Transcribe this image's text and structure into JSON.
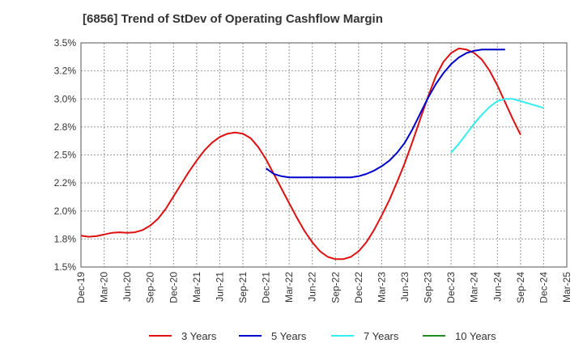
{
  "chart_data": {
    "type": "line",
    "title": "[6856]  Trend of StDev of Operating Cashflow Margin",
    "xlabel": "",
    "ylabel": "",
    "ylim": [
      1.5,
      3.5
    ],
    "y_ticks": [
      "1.5%",
      "1.8%",
      "2.0%",
      "2.2%",
      "2.5%",
      "2.8%",
      "3.0%",
      "3.2%",
      "3.5%"
    ],
    "x_ticks": [
      "Dec-19",
      "Mar-20",
      "Jun-20",
      "Sep-20",
      "Dec-20",
      "Mar-21",
      "Jun-21",
      "Sep-21",
      "Dec-21",
      "Mar-22",
      "Jun-22",
      "Sep-22",
      "Dec-22",
      "Mar-23",
      "Jun-23",
      "Sep-23",
      "Dec-23",
      "Mar-24",
      "Jun-24",
      "Sep-24",
      "Dec-24",
      "Mar-25"
    ],
    "grid": true,
    "legend_position": "bottom",
    "series": [
      {
        "name": "3 Years",
        "color": "#dd1111",
        "points": [
          [
            "Dec-19",
            1.78
          ],
          [
            "Jan-20",
            1.77
          ],
          [
            "Feb-20",
            1.775
          ],
          [
            "Mar-20",
            1.79
          ],
          [
            "Apr-20",
            1.805
          ],
          [
            "May-20",
            1.81
          ],
          [
            "Jun-20",
            1.805
          ],
          [
            "Jul-20",
            1.81
          ],
          [
            "Aug-20",
            1.83
          ],
          [
            "Sep-20",
            1.87
          ],
          [
            "Oct-20",
            1.93
          ],
          [
            "Nov-20",
            2.02
          ],
          [
            "Dec-20",
            2.13
          ],
          [
            "Jan-21",
            2.24
          ],
          [
            "Feb-21",
            2.35
          ],
          [
            "Mar-21",
            2.45
          ],
          [
            "Apr-21",
            2.54
          ],
          [
            "May-21",
            2.61
          ],
          [
            "Jun-21",
            2.66
          ],
          [
            "Jul-21",
            2.69
          ],
          [
            "Aug-21",
            2.7
          ],
          [
            "Sep-21",
            2.69
          ],
          [
            "Oct-21",
            2.65
          ],
          [
            "Nov-21",
            2.57
          ],
          [
            "Dec-21",
            2.46
          ],
          [
            "Jan-22",
            2.33
          ],
          [
            "Feb-22",
            2.2
          ],
          [
            "Mar-22",
            2.07
          ],
          [
            "Apr-22",
            1.94
          ],
          [
            "May-22",
            1.82
          ],
          [
            "Jun-22",
            1.72
          ],
          [
            "Jul-22",
            1.64
          ],
          [
            "Aug-22",
            1.59
          ],
          [
            "Sep-22",
            1.57
          ],
          [
            "Oct-22",
            1.57
          ],
          [
            "Nov-22",
            1.59
          ],
          [
            "Dec-22",
            1.64
          ],
          [
            "Jan-23",
            1.72
          ],
          [
            "Feb-23",
            1.83
          ],
          [
            "Mar-23",
            1.96
          ],
          [
            "Apr-23",
            2.1
          ],
          [
            "May-23",
            2.26
          ],
          [
            "Jun-23",
            2.43
          ],
          [
            "Jul-23",
            2.62
          ],
          [
            "Aug-23",
            2.82
          ],
          [
            "Sep-23",
            3.02
          ],
          [
            "Oct-23",
            3.2
          ],
          [
            "Nov-23",
            3.33
          ],
          [
            "Dec-23",
            3.41
          ],
          [
            "Jan-24",
            3.45
          ],
          [
            "Feb-24",
            3.44
          ],
          [
            "Mar-24",
            3.41
          ],
          [
            "Apr-24",
            3.35
          ],
          [
            "May-24",
            3.25
          ],
          [
            "Jun-24",
            3.12
          ],
          [
            "Jul-24",
            2.97
          ],
          [
            "Aug-24",
            2.82
          ],
          [
            "Sep-24",
            2.68
          ]
        ]
      },
      {
        "name": "5 Years",
        "color": "#0000cc",
        "points": [
          [
            "Dec-21",
            2.38
          ],
          [
            "Jan-22",
            2.33
          ],
          [
            "Feb-22",
            2.31
          ],
          [
            "Mar-22",
            2.3
          ],
          [
            "Apr-22",
            2.3
          ],
          [
            "May-22",
            2.3
          ],
          [
            "Jun-22",
            2.3
          ],
          [
            "Jul-22",
            2.3
          ],
          [
            "Aug-22",
            2.3
          ],
          [
            "Sep-22",
            2.3
          ],
          [
            "Oct-22",
            2.3
          ],
          [
            "Nov-22",
            2.3
          ],
          [
            "Dec-22",
            2.31
          ],
          [
            "Jan-23",
            2.33
          ],
          [
            "Feb-23",
            2.36
          ],
          [
            "Mar-23",
            2.4
          ],
          [
            "Apr-23",
            2.45
          ],
          [
            "May-23",
            2.52
          ],
          [
            "Jun-23",
            2.61
          ],
          [
            "Jul-23",
            2.73
          ],
          [
            "Aug-23",
            2.87
          ],
          [
            "Sep-23",
            3.01
          ],
          [
            "Oct-23",
            3.13
          ],
          [
            "Nov-23",
            3.23
          ],
          [
            "Dec-23",
            3.31
          ],
          [
            "Jan-24",
            3.37
          ],
          [
            "Feb-24",
            3.41
          ],
          [
            "Mar-24",
            3.43
          ],
          [
            "Apr-24",
            3.44
          ],
          [
            "May-24",
            3.44
          ],
          [
            "Jun-24",
            3.44
          ],
          [
            "Jul-24",
            3.44
          ]
        ]
      },
      {
        "name": "7 Years",
        "color": "#33eeee",
        "points": [
          [
            "Dec-23",
            2.52
          ],
          [
            "Jan-24",
            2.6
          ],
          [
            "Feb-24",
            2.69
          ],
          [
            "Mar-24",
            2.78
          ],
          [
            "Apr-24",
            2.86
          ],
          [
            "May-24",
            2.93
          ],
          [
            "Jun-24",
            2.98
          ],
          [
            "Jul-24",
            3.0
          ],
          [
            "Aug-24",
            3.0
          ],
          [
            "Sep-24",
            2.98
          ],
          [
            "Oct-24",
            2.96
          ],
          [
            "Nov-24",
            2.94
          ],
          [
            "Dec-24",
            2.92
          ]
        ]
      },
      {
        "name": "10 Years",
        "color": "#228b22",
        "points": []
      }
    ]
  }
}
